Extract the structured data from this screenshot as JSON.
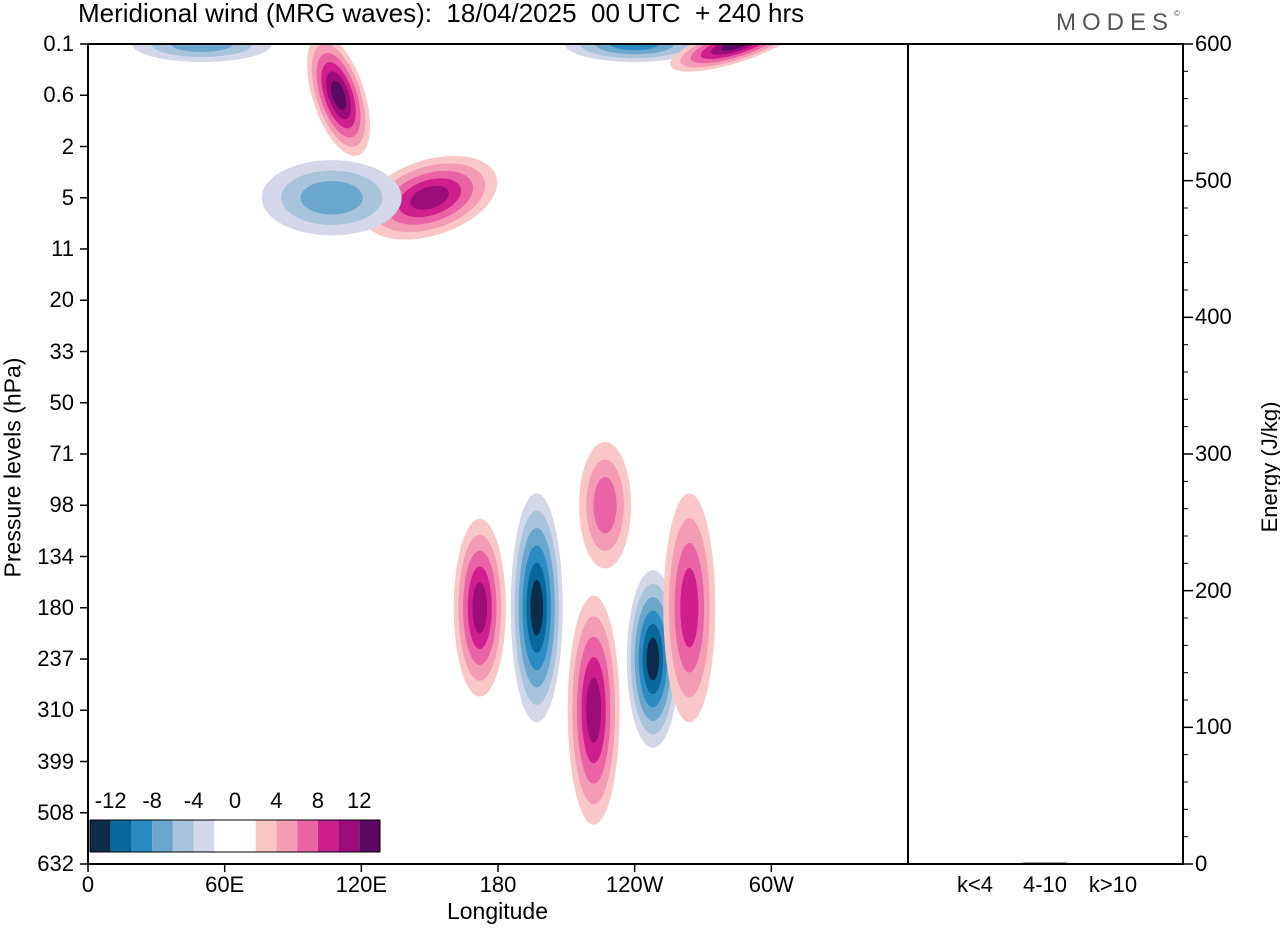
{
  "header": {
    "title": "Meridional wind (MRG waves):  18/04/2025  00 UTC  + 240 hrs",
    "logo": "MODES",
    "logo_mark": "©"
  },
  "colors": {
    "neg": [
      "#0c2c4a",
      "#08679c",
      "#2b8cc4",
      "#6ba7cc",
      "#a8c3dc",
      "#d4d7e8"
    ],
    "pos": [
      "#f9c7c7",
      "#f49bb5",
      "#ea63a5",
      "#cf1f8c",
      "#9c0d79",
      "#5b0a64"
    ]
  },
  "chart_data": [
    {
      "type": "heatmap",
      "title": "Meridional wind (MRG waves):  18/04/2025  00 UTC  + 240 hrs",
      "xlabel": "Longitude",
      "ylabel": "Pressure levels (hPa)",
      "x_ticks": [
        "0",
        "60E",
        "120E",
        "180",
        "120W",
        "60W"
      ],
      "x_tick_values": [
        0,
        60,
        120,
        180,
        240,
        300
      ],
      "xlim": [
        0,
        360
      ],
      "y_ticks": [
        "0.1",
        "0.6",
        "2",
        "5",
        "11",
        "20",
        "33",
        "50",
        "71",
        "98",
        "134",
        "180",
        "237",
        "310",
        "399",
        "508",
        "632"
      ],
      "colorbar": {
        "labels": [
          "-12",
          "-8",
          "-4",
          "0",
          "4",
          "8",
          "12"
        ],
        "levels": [
          -14,
          -12,
          -10,
          -8,
          -6,
          -4,
          -2,
          2,
          4,
          6,
          8,
          10,
          12,
          14
        ]
      },
      "features": [
        {
          "lon": 197,
          "level": "180",
          "sign": "negative",
          "peak": -14,
          "extent": "134 to 399 hPa"
        },
        {
          "lon": 248,
          "level": "237",
          "sign": "negative",
          "peak": -12,
          "extent": "180 to 399 hPa"
        },
        {
          "lon": 222,
          "level": "310",
          "sign": "positive",
          "peak": 10,
          "extent": "180 to 508 hPa"
        },
        {
          "lon": 172,
          "level": "180",
          "sign": "positive",
          "peak": 10,
          "extent": "134 to 310 hPa"
        },
        {
          "lon": 264,
          "level": "180",
          "sign": "positive",
          "peak": 8,
          "extent": "134 to 399 hPa"
        },
        {
          "lon": 227,
          "level": "98",
          "sign": "positive",
          "peak": 6,
          "extent": "71 to 134 hPa"
        },
        {
          "lon": 110,
          "level": "0.6",
          "sign": "positive",
          "peak": 12,
          "extent": "0.1 to 2 hPa"
        },
        {
          "lon": 150,
          "level": "5",
          "sign": "positive",
          "peak": 10,
          "extent": "2 to 5 hPa"
        },
        {
          "lon": 50,
          "level": "0.1",
          "sign": "negative",
          "peak": -6,
          "extent": "0.1 hPa"
        },
        {
          "lon": 240,
          "level": "0.1",
          "sign": "negative",
          "peak": -8,
          "extent": "0.1 hPa"
        },
        {
          "lon": 285,
          "level": "0.1",
          "sign": "positive",
          "peak": 12,
          "extent": "0.1 hPa"
        },
        {
          "lon": 107,
          "level": "5",
          "sign": "negative",
          "peak": -6,
          "extent": "2 to 5 hPa"
        }
      ]
    },
    {
      "type": "bar",
      "categories": [
        "k<4",
        "4-10",
        "k>10"
      ],
      "values": [
        0,
        1,
        0
      ],
      "ylabel": "Energy (J/kg)",
      "ylim": [
        0,
        600
      ],
      "y_ticks": [
        "0",
        "100",
        "200",
        "300",
        "400",
        "500",
        "600"
      ]
    }
  ]
}
